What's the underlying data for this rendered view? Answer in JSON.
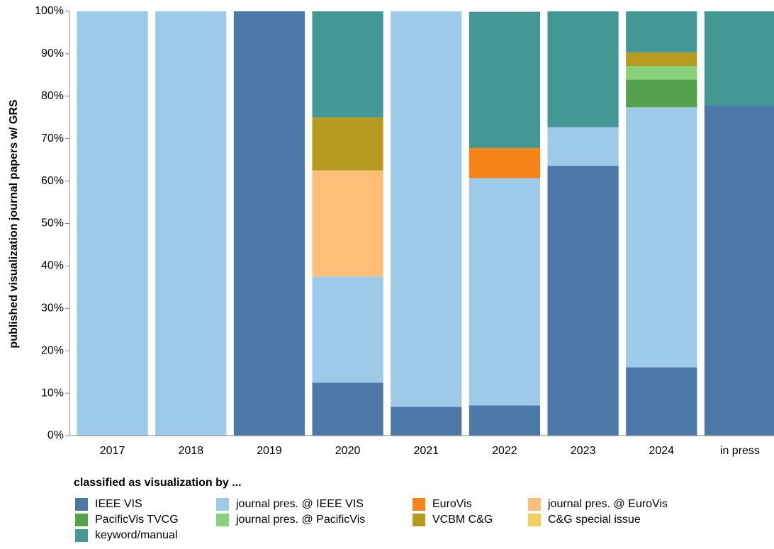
{
  "chart_data": {
    "type": "stacked_bar",
    "y_label": "published visualization journal papers w/ GRS",
    "legend_title": "classified as visualization by ...",
    "categories": [
      "2017",
      "2018",
      "2019",
      "2020",
      "2021",
      "2022",
      "2023",
      "2024",
      "in press"
    ],
    "series": [
      {
        "name": "IEEE VIS",
        "color": "#4c78a8",
        "values": [
          0,
          0,
          100,
          12.5,
          6.8,
          7.1,
          63.6,
          16.1,
          77.8
        ]
      },
      {
        "name": "journal pres. @ IEEE VIS",
        "color": "#9ecae9",
        "values": [
          100,
          100,
          0,
          25,
          93.2,
          53.6,
          9.1,
          61.3,
          0
        ]
      },
      {
        "name": "EuroVis",
        "color": "#f58518",
        "values": [
          0,
          0,
          0,
          0,
          0,
          7.1,
          0,
          0,
          0
        ]
      },
      {
        "name": "journal pres. @ EuroVis",
        "color": "#ffbf79",
        "values": [
          0,
          0,
          0,
          25,
          0,
          0,
          0,
          0,
          0
        ]
      },
      {
        "name": "PacificVis TVCG",
        "color": "#54a24b",
        "values": [
          0,
          0,
          0,
          0,
          0,
          0,
          0,
          6.5,
          0
        ]
      },
      {
        "name": "journal pres. @ PacificVis",
        "color": "#88d27a",
        "values": [
          0,
          0,
          0,
          0,
          0,
          0,
          0,
          3.2,
          0
        ]
      },
      {
        "name": "VCBM C&G",
        "color": "#b79a20",
        "values": [
          0,
          0,
          0,
          12.5,
          0,
          0,
          0,
          3.2,
          0
        ]
      },
      {
        "name": "C&G special issue",
        "color": "#f2cf5b",
        "values": [
          0,
          0,
          0,
          0,
          0,
          0,
          0,
          0,
          0
        ]
      },
      {
        "name": "keyword/manual",
        "color": "#439894",
        "values": [
          0,
          0,
          0,
          25,
          0,
          32.1,
          27.3,
          9.7,
          22.2
        ]
      }
    ],
    "ylim": [
      0,
      100
    ],
    "yticks": [
      {
        "value": 0,
        "label": "0%"
      },
      {
        "value": 10,
        "label": "10%"
      },
      {
        "value": 20,
        "label": "20%"
      },
      {
        "value": 30,
        "label": "30%"
      },
      {
        "value": 40,
        "label": "40%"
      },
      {
        "value": 50,
        "label": "50%"
      },
      {
        "value": 60,
        "label": "60%"
      },
      {
        "value": 70,
        "label": "70%"
      },
      {
        "value": 80,
        "label": "80%"
      },
      {
        "value": 90,
        "label": "90%"
      },
      {
        "value": 100,
        "label": "100%"
      }
    ],
    "legend": "bottom-left"
  }
}
